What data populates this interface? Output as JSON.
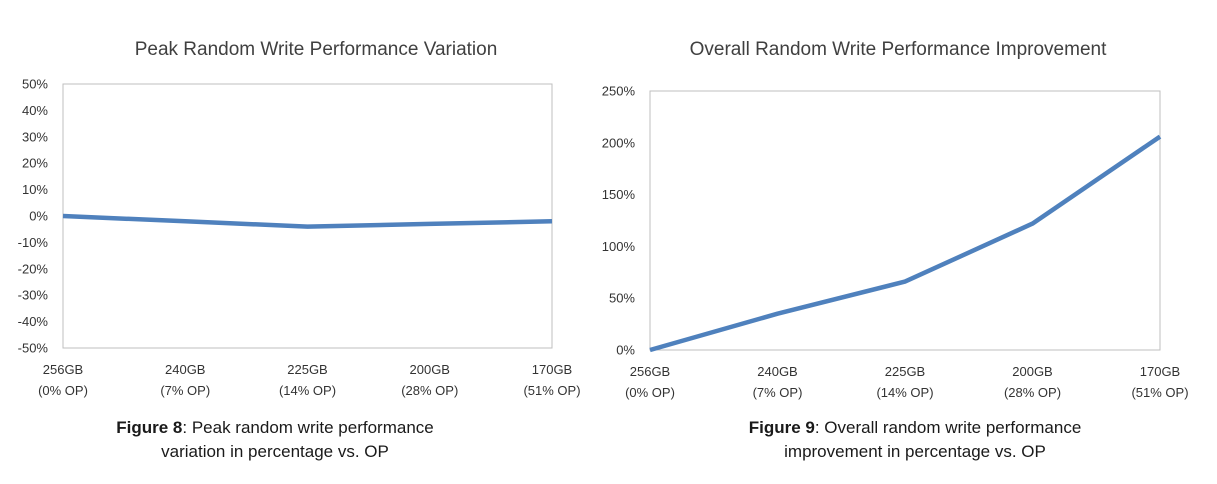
{
  "chart_data": [
    {
      "type": "line",
      "title": "Peak Random Write Performance Variation",
      "xlabel": "",
      "ylabel": "",
      "categories": [
        [
          "256GB",
          "(0% OP)"
        ],
        [
          "240GB",
          "(7% OP)"
        ],
        [
          "225GB",
          "(14% OP)"
        ],
        [
          "200GB",
          "(28% OP)"
        ],
        [
          "170GB",
          "(51% OP)"
        ]
      ],
      "series": [
        {
          "values": [
            0,
            -2,
            -4,
            -3,
            -2
          ]
        }
      ],
      "ylim": [
        -50,
        50
      ],
      "yticks": [
        50,
        40,
        30,
        20,
        10,
        0,
        -10,
        -20,
        -30,
        -40,
        -50
      ],
      "ytick_labels": [
        "50%",
        "40%",
        "30%",
        "20%",
        "10%",
        "0%",
        "-10%",
        "-20%",
        "-30%",
        "-40%",
        "-50%"
      ],
      "grid": false,
      "line_color": "#4f81bd"
    },
    {
      "type": "line",
      "title": "Overall Random Write Performance Improvement",
      "xlabel": "",
      "ylabel": "",
      "categories": [
        [
          "256GB",
          "(0% OP)"
        ],
        [
          "240GB",
          "(7% OP)"
        ],
        [
          "225GB",
          "(14% OP)"
        ],
        [
          "200GB",
          "(28% OP)"
        ],
        [
          "170GB",
          "(51% OP)"
        ]
      ],
      "series": [
        {
          "values": [
            0,
            35,
            66,
            122,
            206
          ]
        }
      ],
      "ylim": [
        0,
        250
      ],
      "yticks": [
        250,
        200,
        150,
        100,
        50,
        0
      ],
      "ytick_labels": [
        "250%",
        "200%",
        "150%",
        "100%",
        "50%",
        "0%"
      ],
      "grid": false,
      "line_color": "#4f81bd"
    }
  ],
  "captions": [
    {
      "label": "Figure 8",
      "text_line1": ": Peak random write performance",
      "text_line2": "variation in percentage vs. OP"
    },
    {
      "label": "Figure 9",
      "text_line1": ": Overall random write performance",
      "text_line2": "improvement in percentage vs. OP"
    }
  ]
}
